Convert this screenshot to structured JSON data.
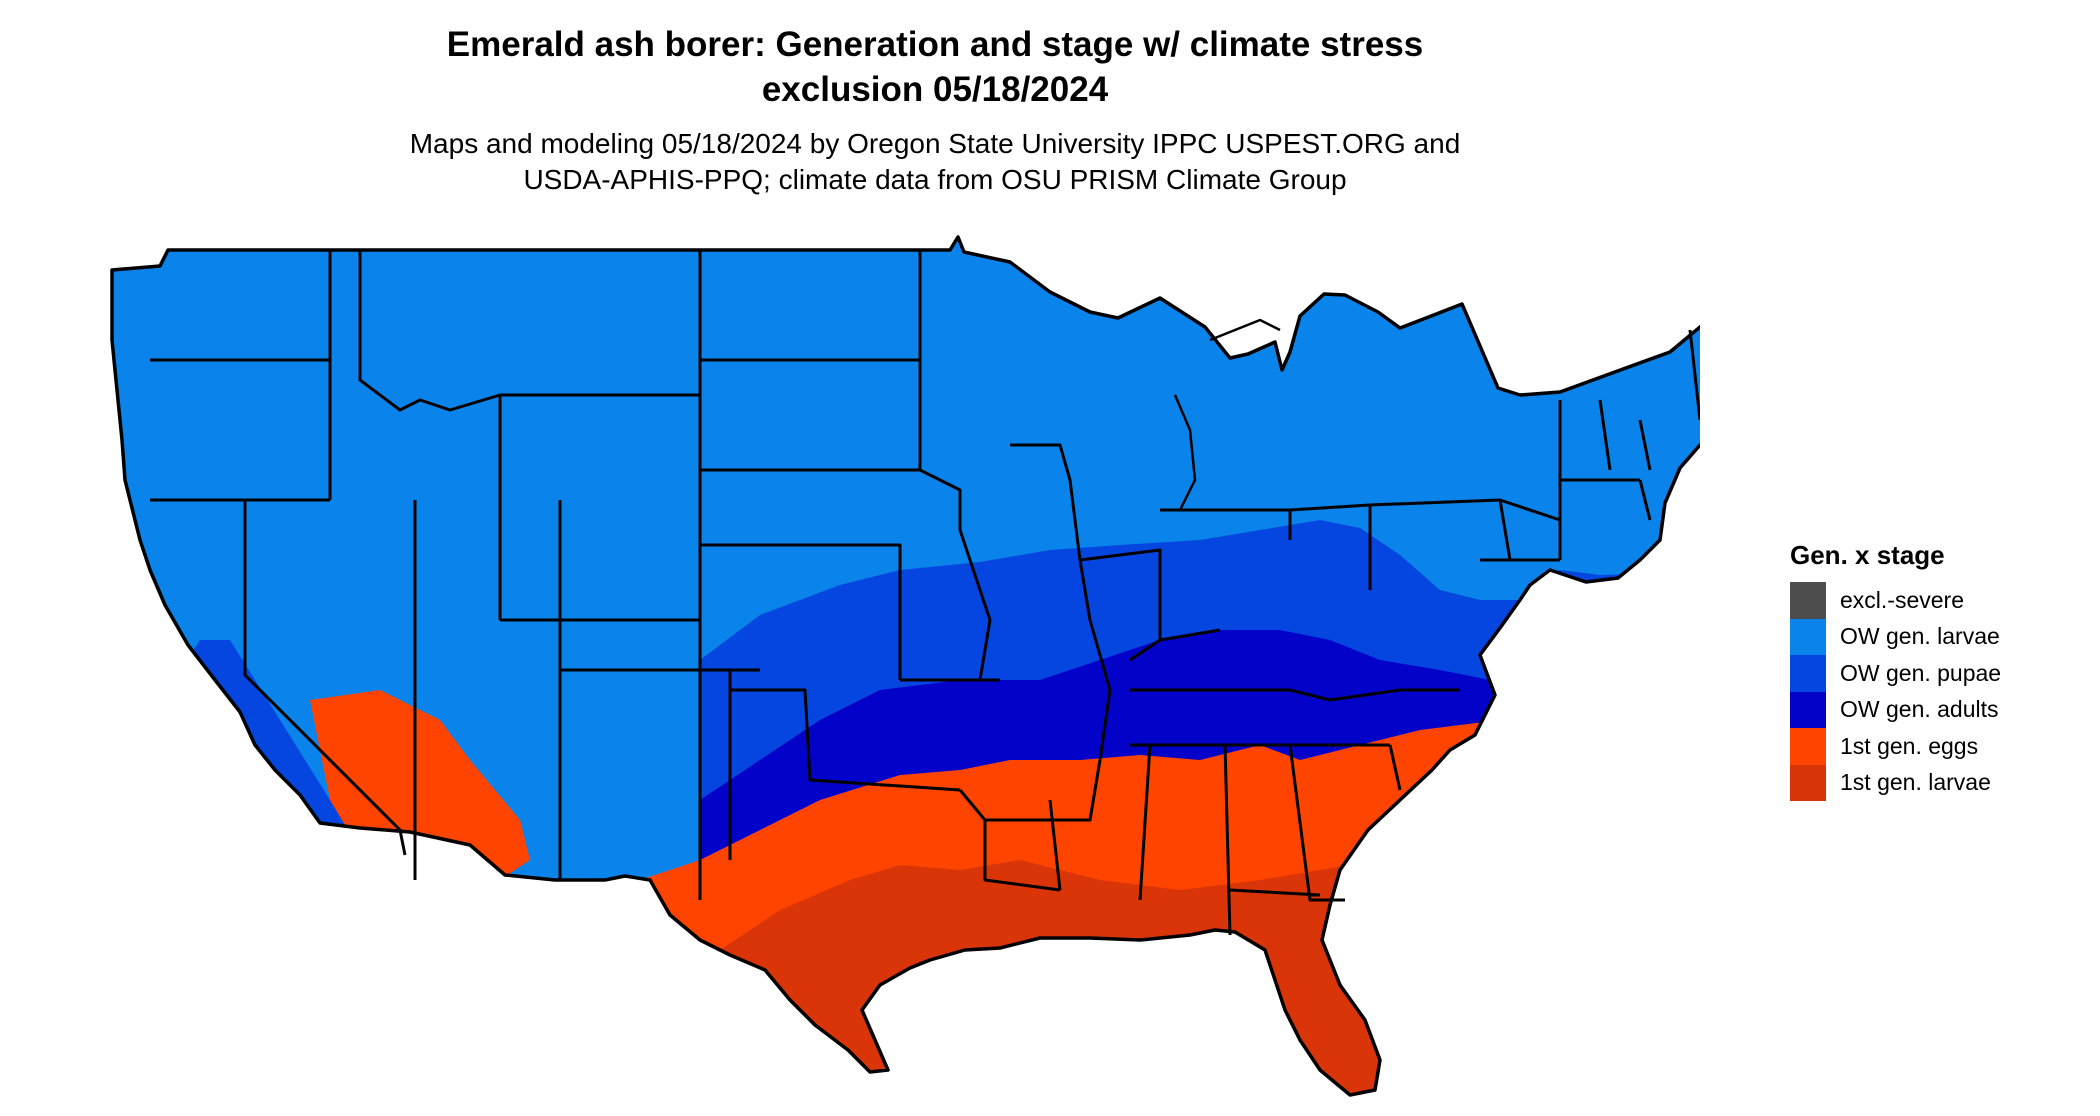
{
  "title_line1": "Emerald ash borer: Generation and stage w/ climate stress",
  "title_line2": "exclusion 05/18/2024",
  "subtitle_line1": "Maps and modeling 05/18/2024 by Oregon State University IPPC USPEST.ORG and",
  "subtitle_line2": "USDA-APHIS-PPQ; climate data from OSU PRISM Climate Group",
  "legend": {
    "title": "Gen. x stage",
    "items": [
      {
        "label": "excl.-severe",
        "color": "#4d4d4d"
      },
      {
        "label": "OW gen. larvae",
        "color": "#0a83ea"
      },
      {
        "label": "OW gen. pupae",
        "color": "#0545e0"
      },
      {
        "label": "OW gen. adults",
        "color": "#0202c9"
      },
      {
        "label": "1st gen. eggs",
        "color": "#ff4400"
      },
      {
        "label": "1st gen. larvae",
        "color": "#d93508"
      }
    ]
  },
  "colors": {
    "boundary": "#000000",
    "background": "#ffffff"
  }
}
